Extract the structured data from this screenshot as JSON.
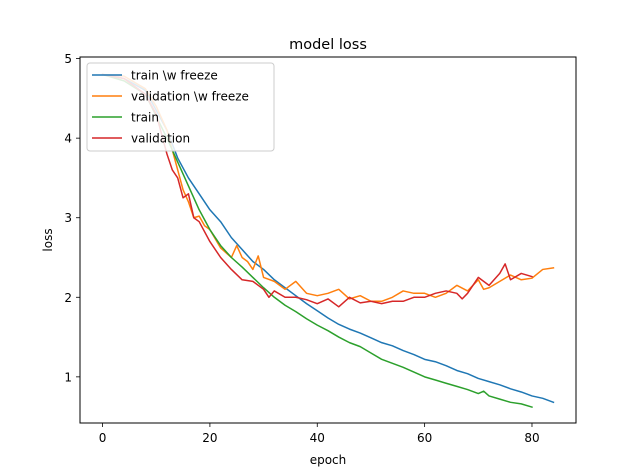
{
  "chart_data": {
    "type": "line",
    "title": "model loss",
    "xlabel": "epoch",
    "ylabel": "loss",
    "xlim": [
      -4.2,
      88.2
    ],
    "ylim": [
      0.42,
      5.02
    ],
    "xticks": [
      0,
      20,
      40,
      60,
      80
    ],
    "yticks": [
      1,
      2,
      3,
      4,
      5
    ],
    "grid": false,
    "legend_position": "upper-left",
    "series": [
      {
        "name": "train \\w freeze",
        "color": "#1f77b4",
        "x": [
          0,
          4,
          8,
          12,
          14,
          16,
          18,
          20,
          22,
          24,
          26,
          28,
          30,
          32,
          34,
          36,
          38,
          40,
          42,
          44,
          46,
          48,
          50,
          52,
          54,
          56,
          58,
          60,
          62,
          64,
          66,
          68,
          70,
          72,
          74,
          76,
          78,
          80,
          82,
          84
        ],
        "y": [
          4.8,
          4.75,
          4.6,
          4.1,
          3.75,
          3.5,
          3.3,
          3.1,
          2.95,
          2.75,
          2.6,
          2.45,
          2.35,
          2.22,
          2.12,
          2.02,
          1.92,
          1.83,
          1.74,
          1.66,
          1.6,
          1.55,
          1.49,
          1.43,
          1.39,
          1.33,
          1.28,
          1.22,
          1.19,
          1.14,
          1.08,
          1.04,
          0.98,
          0.94,
          0.9,
          0.85,
          0.81,
          0.76,
          0.73,
          0.68
        ]
      },
      {
        "name": "validation \\w freeze",
        "color": "#ff7f0e",
        "x": [
          0,
          4,
          8,
          10,
          12,
          14,
          15,
          16,
          17,
          18,
          19,
          20,
          22,
          24,
          25,
          26,
          27,
          28,
          29,
          30,
          32,
          34,
          36,
          38,
          40,
          42,
          44,
          46,
          48,
          50,
          52,
          54,
          56,
          58,
          60,
          62,
          64,
          66,
          68,
          70,
          71,
          72,
          74,
          76,
          78,
          80,
          82,
          84
        ],
        "y": [
          4.8,
          4.78,
          4.62,
          4.4,
          4.1,
          3.6,
          3.35,
          3.2,
          3.0,
          3.02,
          2.9,
          2.85,
          2.62,
          2.5,
          2.65,
          2.5,
          2.45,
          2.35,
          2.52,
          2.25,
          2.2,
          2.1,
          2.2,
          2.05,
          2.02,
          2.05,
          2.1,
          1.98,
          2.02,
          1.95,
          1.95,
          2.0,
          2.08,
          2.05,
          2.05,
          2.0,
          2.05,
          2.15,
          2.08,
          2.22,
          2.1,
          2.12,
          2.2,
          2.28,
          2.22,
          2.24,
          2.35,
          2.37
        ]
      },
      {
        "name": "train",
        "color": "#2ca02c",
        "x": [
          0,
          4,
          8,
          12,
          14,
          16,
          18,
          20,
          22,
          24,
          26,
          28,
          30,
          32,
          34,
          36,
          38,
          40,
          42,
          44,
          46,
          48,
          50,
          52,
          54,
          56,
          58,
          60,
          62,
          64,
          66,
          68,
          70,
          71,
          72,
          74,
          76,
          78,
          80
        ],
        "y": [
          4.8,
          4.72,
          4.55,
          4.0,
          3.7,
          3.4,
          3.1,
          2.85,
          2.65,
          2.5,
          2.38,
          2.25,
          2.12,
          2.0,
          1.9,
          1.82,
          1.73,
          1.65,
          1.58,
          1.5,
          1.43,
          1.38,
          1.3,
          1.22,
          1.17,
          1.12,
          1.06,
          1.0,
          0.96,
          0.92,
          0.88,
          0.84,
          0.79,
          0.82,
          0.76,
          0.72,
          0.68,
          0.66,
          0.62
        ]
      },
      {
        "name": "validation",
        "color": "#d62728",
        "x": [
          0,
          4,
          8,
          10,
          12,
          13,
          14,
          15,
          16,
          17,
          18,
          20,
          22,
          24,
          26,
          28,
          30,
          31,
          32,
          34,
          36,
          38,
          40,
          42,
          44,
          46,
          48,
          50,
          52,
          54,
          56,
          58,
          60,
          62,
          64,
          66,
          67,
          68,
          70,
          72,
          74,
          75,
          76,
          78,
          80
        ],
        "y": [
          4.8,
          4.75,
          4.55,
          4.3,
          3.8,
          3.6,
          3.5,
          3.25,
          3.3,
          3.0,
          2.95,
          2.7,
          2.5,
          2.35,
          2.22,
          2.2,
          2.1,
          2.0,
          2.08,
          2.0,
          2.0,
          1.97,
          1.92,
          1.98,
          1.88,
          2.0,
          1.93,
          1.95,
          1.92,
          1.95,
          1.95,
          2.0,
          2.0,
          2.05,
          2.08,
          2.05,
          1.98,
          2.05,
          2.25,
          2.15,
          2.3,
          2.42,
          2.22,
          2.3,
          2.26
        ]
      }
    ]
  }
}
